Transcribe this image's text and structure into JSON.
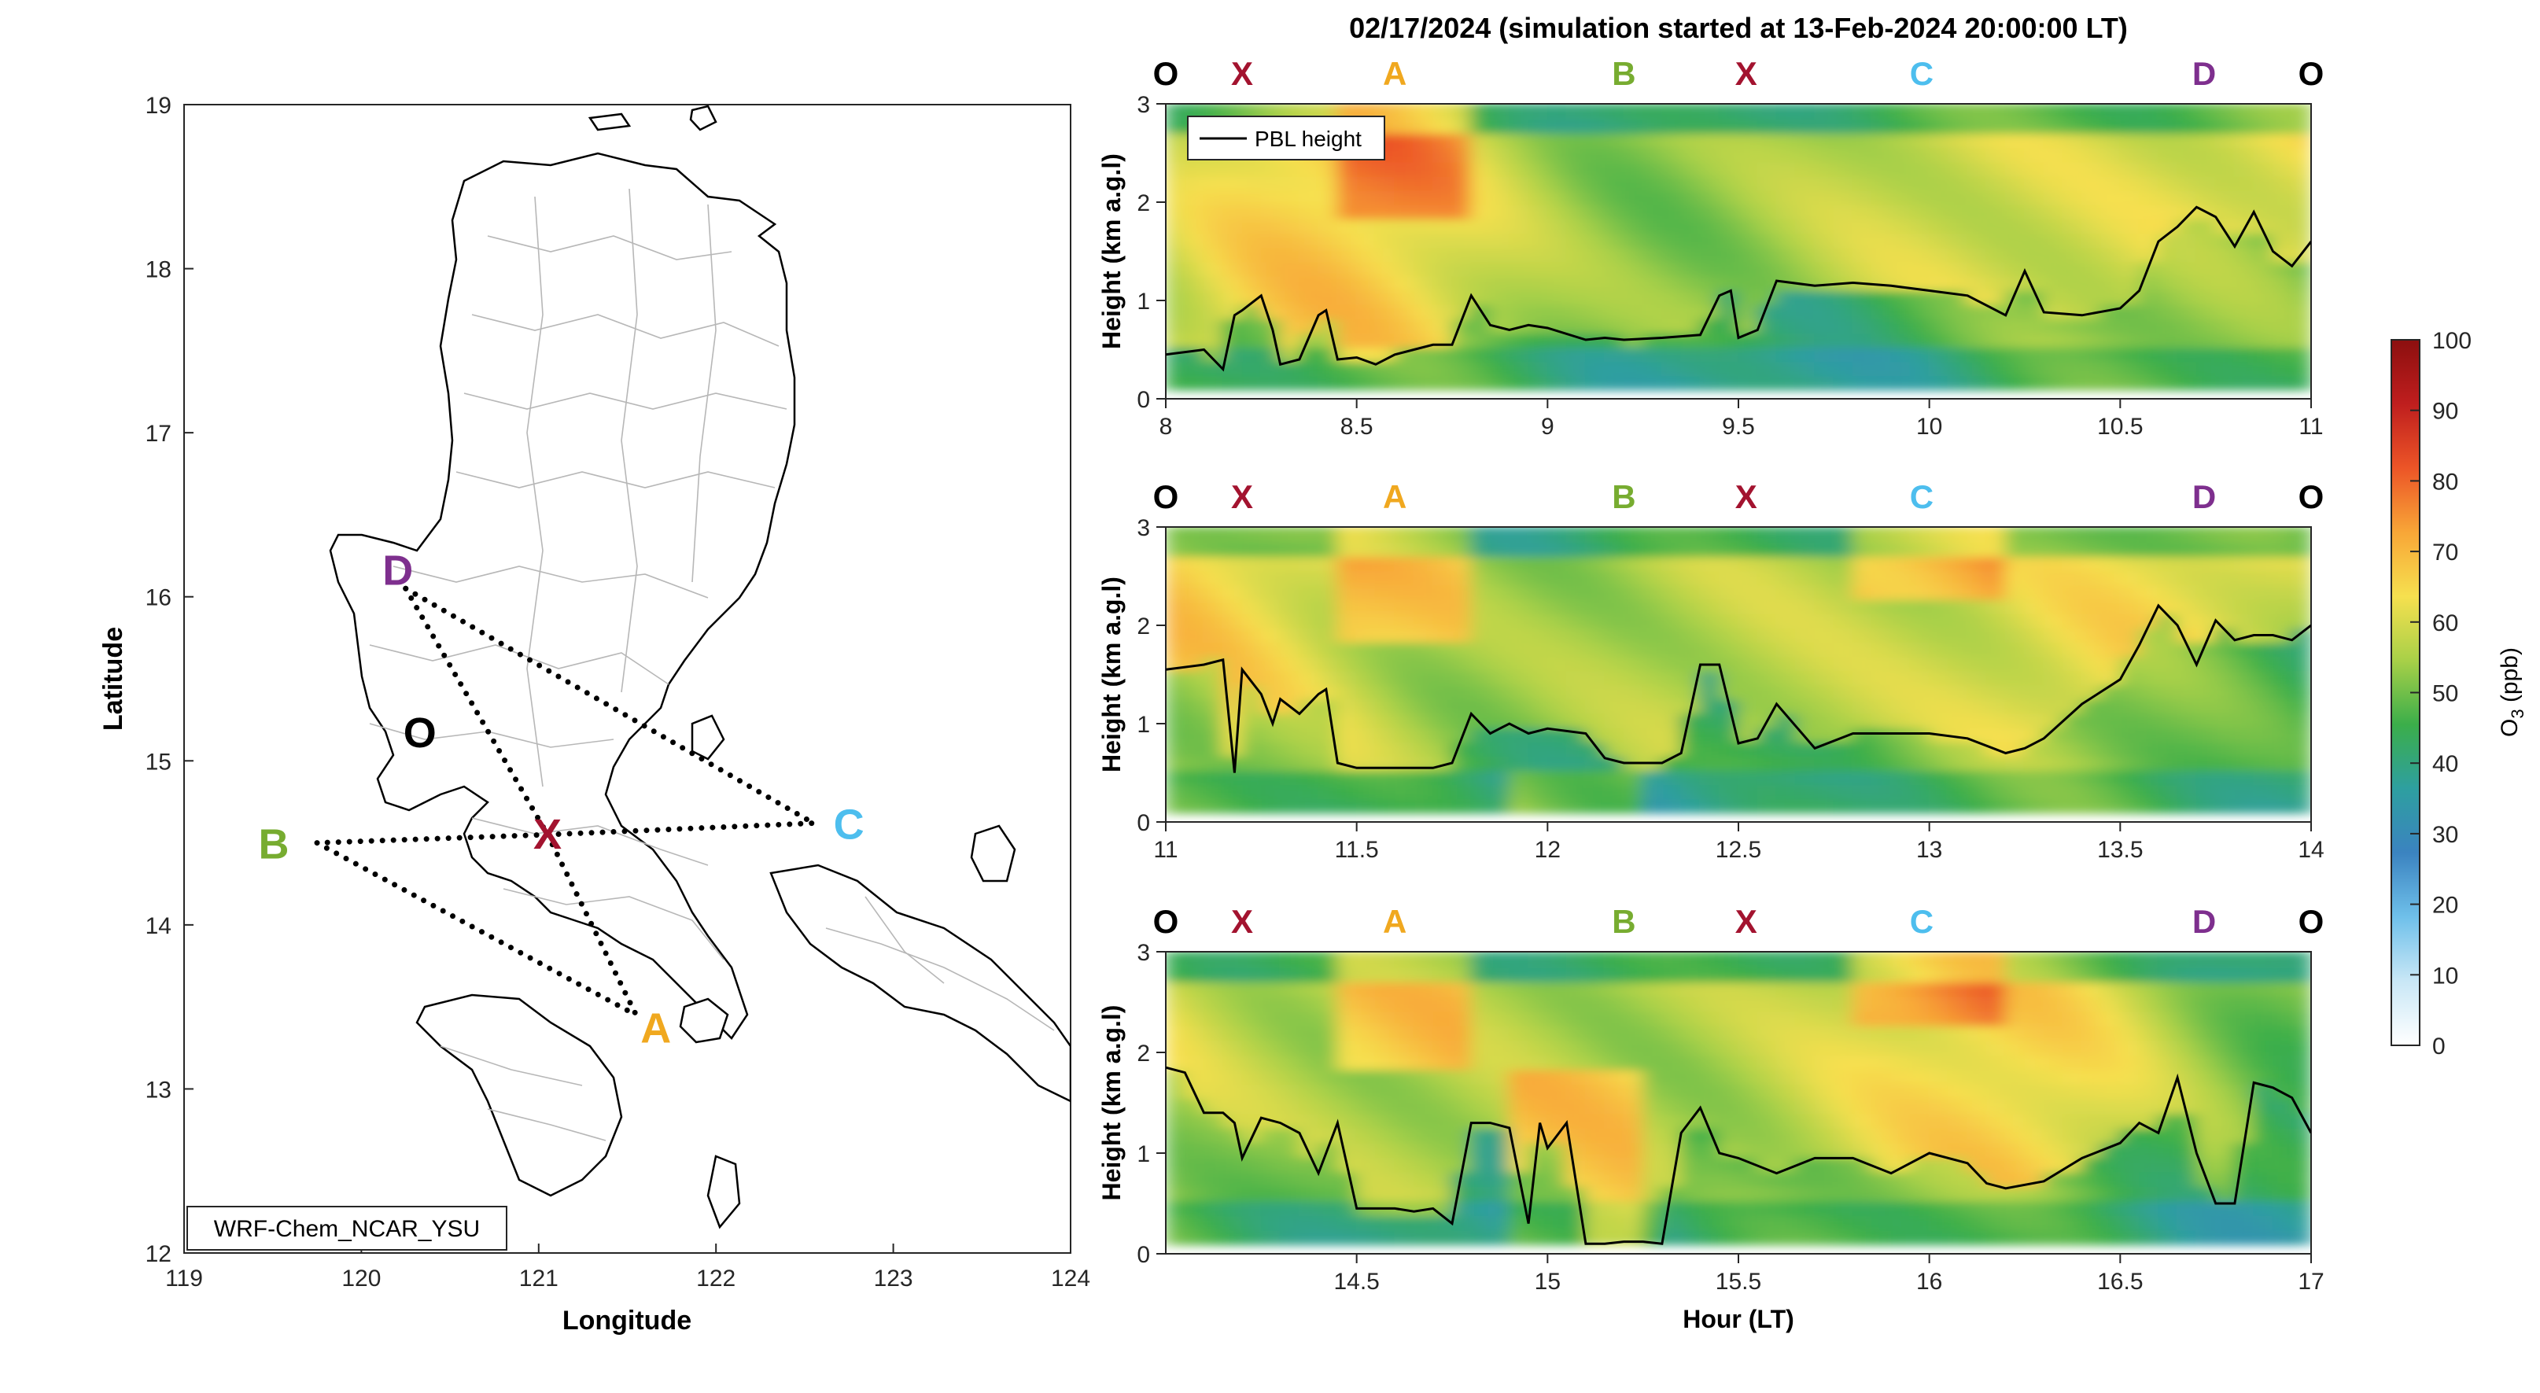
{
  "figure_title": "02/17/2024 (simulation started at 13-Feb-2024 20:00:00 LT)",
  "colors": {
    "O": "#000000",
    "X": "#a3132f",
    "A": "#f0a81f",
    "B": "#77ac30",
    "C": "#4dbeee",
    "D": "#7e2f8e",
    "pbl_line": "#000000"
  },
  "chart_data": [
    {
      "type": "map",
      "name": "Luzon route map",
      "xlabel": "Longitude",
      "ylabel": "Latitude",
      "xlim": [
        119,
        124
      ],
      "ylim": [
        12,
        19
      ],
      "x_ticks": [
        "119",
        "120",
        "121",
        "122",
        "123",
        "124"
      ],
      "y_ticks": [
        "12",
        "13",
        "14",
        "15",
        "16",
        "17",
        "18",
        "19"
      ],
      "model_label": "WRF-Chem_NCAR_YSU",
      "waypoints": [
        {
          "label": "O",
          "lon": 120.33,
          "lat": 15.17
        },
        {
          "label": "X",
          "lon": 121.05,
          "lat": 14.55
        },
        {
          "label": "A",
          "lon": 121.55,
          "lat": 13.45
        },
        {
          "label": "B",
          "lon": 119.75,
          "lat": 14.5
        },
        {
          "label": "C",
          "lon": 122.55,
          "lat": 14.62
        },
        {
          "label": "D",
          "lon": 120.25,
          "lat": 16.05
        }
      ],
      "route_segments": [
        [
          "D",
          "X"
        ],
        [
          "D",
          "C"
        ],
        [
          "X",
          "C"
        ],
        [
          "X",
          "A"
        ],
        [
          "X",
          "B"
        ],
        [
          "B",
          "A"
        ]
      ]
    },
    {
      "type": "heatmap",
      "name": "Panel 1",
      "ylabel": "Height (km a.g.l)",
      "xlim": [
        8,
        11
      ],
      "ylim": [
        0,
        3
      ],
      "x_ticks": [
        "8",
        "8.5",
        "9",
        "9.5",
        "10",
        "10.5",
        "11"
      ],
      "y_ticks": [
        "0",
        "1",
        "2",
        "3"
      ],
      "legend": "PBL height",
      "top_markers": [
        {
          "label": "O",
          "x": 8.0
        },
        {
          "label": "X",
          "x": 8.2
        },
        {
          "label": "A",
          "x": 8.6
        },
        {
          "label": "B",
          "x": 9.2
        },
        {
          "label": "X",
          "x": 9.52
        },
        {
          "label": "C",
          "x": 9.98
        },
        {
          "label": "D",
          "x": 10.72
        },
        {
          "label": "O",
          "x": 11.0
        }
      ],
      "pbl_height": {
        "x": [
          8.0,
          8.1,
          8.15,
          8.18,
          8.2,
          8.25,
          8.28,
          8.3,
          8.35,
          8.4,
          8.42,
          8.45,
          8.5,
          8.55,
          8.6,
          8.65,
          8.7,
          8.75,
          8.8,
          8.85,
          8.9,
          8.95,
          9.0,
          9.1,
          9.15,
          9.2,
          9.3,
          9.4,
          9.45,
          9.48,
          9.5,
          9.55,
          9.6,
          9.7,
          9.8,
          9.9,
          10.0,
          10.1,
          10.2,
          10.25,
          10.3,
          10.4,
          10.5,
          10.55,
          10.6,
          10.65,
          10.7,
          10.75,
          10.8,
          10.85,
          10.9,
          10.95,
          11.0
        ],
        "y": [
          0.45,
          0.5,
          0.3,
          0.85,
          0.9,
          1.05,
          0.7,
          0.35,
          0.4,
          0.85,
          0.9,
          0.4,
          0.42,
          0.35,
          0.45,
          0.5,
          0.55,
          0.55,
          1.05,
          0.75,
          0.7,
          0.75,
          0.72,
          0.6,
          0.62,
          0.6,
          0.62,
          0.65,
          1.05,
          1.1,
          0.62,
          0.7,
          1.2,
          1.15,
          1.18,
          1.15,
          1.1,
          1.05,
          0.85,
          1.3,
          0.88,
          0.85,
          0.92,
          1.1,
          1.6,
          1.75,
          1.95,
          1.85,
          1.55,
          1.9,
          1.5,
          1.35,
          1.6
        ]
      }
    },
    {
      "type": "heatmap",
      "name": "Panel 2",
      "ylabel": "Height (km a.g.l)",
      "xlim": [
        11,
        14
      ],
      "ylim": [
        0,
        3
      ],
      "x_ticks": [
        "11",
        "11.5",
        "12",
        "12.5",
        "13",
        "13.5",
        "14"
      ],
      "y_ticks": [
        "0",
        "1",
        "2",
        "3"
      ],
      "top_markers": [
        {
          "label": "O",
          "x": 11.0
        },
        {
          "label": "X",
          "x": 11.2
        },
        {
          "label": "A",
          "x": 11.6
        },
        {
          "label": "B",
          "x": 12.2
        },
        {
          "label": "X",
          "x": 12.52
        },
        {
          "label": "C",
          "x": 12.98
        },
        {
          "label": "D",
          "x": 13.72
        },
        {
          "label": "O",
          "x": 14.0
        }
      ],
      "pbl_height": {
        "x": [
          11.0,
          11.1,
          11.15,
          11.18,
          11.2,
          11.25,
          11.28,
          11.3,
          11.35,
          11.4,
          11.42,
          11.45,
          11.5,
          11.55,
          11.6,
          11.65,
          11.7,
          11.75,
          11.8,
          11.85,
          11.9,
          11.95,
          12.0,
          12.1,
          12.15,
          12.2,
          12.3,
          12.35,
          12.4,
          12.45,
          12.5,
          12.55,
          12.6,
          12.7,
          12.8,
          12.9,
          13.0,
          13.1,
          13.2,
          13.25,
          13.3,
          13.4,
          13.5,
          13.55,
          13.6,
          13.65,
          13.7,
          13.75,
          13.8,
          13.85,
          13.9,
          13.95,
          14.0
        ],
        "y": [
          1.55,
          1.6,
          1.65,
          0.5,
          1.55,
          1.3,
          1.0,
          1.25,
          1.1,
          1.3,
          1.35,
          0.6,
          0.55,
          0.55,
          0.55,
          0.55,
          0.55,
          0.6,
          1.1,
          0.9,
          1.0,
          0.9,
          0.95,
          0.9,
          0.65,
          0.6,
          0.6,
          0.7,
          1.6,
          1.6,
          0.8,
          0.85,
          1.2,
          0.75,
          0.9,
          0.9,
          0.9,
          0.85,
          0.7,
          0.75,
          0.85,
          1.2,
          1.45,
          1.8,
          2.2,
          2.0,
          1.6,
          2.05,
          1.85,
          1.9,
          1.9,
          1.85,
          2.0
        ]
      }
    },
    {
      "type": "heatmap",
      "name": "Panel 3",
      "ylabel": "Height (km a.g.l)",
      "xlabel": "Hour (LT)",
      "xlim": [
        14,
        17
      ],
      "ylim": [
        0,
        3
      ],
      "x_ticks": [
        "14.5",
        "15",
        "15.5",
        "16",
        "16.5",
        "17"
      ],
      "y_ticks": [
        "0",
        "1",
        "2",
        "3"
      ],
      "top_markers": [
        {
          "label": "O",
          "x": 14.0
        },
        {
          "label": "X",
          "x": 14.2
        },
        {
          "label": "A",
          "x": 14.6
        },
        {
          "label": "B",
          "x": 15.2
        },
        {
          "label": "X",
          "x": 15.52
        },
        {
          "label": "C",
          "x": 15.98
        },
        {
          "label": "D",
          "x": 16.72
        },
        {
          "label": "O",
          "x": 17.0
        }
      ],
      "pbl_height": {
        "x": [
          14.0,
          14.05,
          14.1,
          14.15,
          14.18,
          14.2,
          14.25,
          14.3,
          14.35,
          14.4,
          14.45,
          14.5,
          14.55,
          14.6,
          14.65,
          14.7,
          14.75,
          14.8,
          14.85,
          14.9,
          14.95,
          14.98,
          15.0,
          15.05,
          15.1,
          15.15,
          15.2,
          15.25,
          15.3,
          15.35,
          15.4,
          15.45,
          15.5,
          15.6,
          15.7,
          15.8,
          15.9,
          16.0,
          16.1,
          16.15,
          16.2,
          16.3,
          16.4,
          16.5,
          16.55,
          16.6,
          16.65,
          16.7,
          16.75,
          16.8,
          16.85,
          16.9,
          16.95,
          17.0
        ],
        "y": [
          1.85,
          1.8,
          1.4,
          1.4,
          1.3,
          0.95,
          1.35,
          1.3,
          1.2,
          0.8,
          1.3,
          0.45,
          0.45,
          0.45,
          0.42,
          0.45,
          0.3,
          1.3,
          1.3,
          1.25,
          0.3,
          1.3,
          1.05,
          1.3,
          0.1,
          0.1,
          0.12,
          0.12,
          0.1,
          1.2,
          1.45,
          1.0,
          0.95,
          0.8,
          0.95,
          0.95,
          0.8,
          1.0,
          0.9,
          0.7,
          0.65,
          0.72,
          0.95,
          1.1,
          1.3,
          1.2,
          1.75,
          1.0,
          0.5,
          0.5,
          1.7,
          1.65,
          1.55,
          1.2
        ]
      }
    },
    {
      "type": "colorbar",
      "label": "O3 (ppb)",
      "range": [
        0,
        100
      ],
      "ticks": [
        "0",
        "10",
        "20",
        "30",
        "40",
        "50",
        "60",
        "70",
        "80",
        "90",
        "100"
      ],
      "stops": [
        "#ffffff",
        "#c9e7f6",
        "#6fc0ea",
        "#3b83c0",
        "#2e9fa0",
        "#3bae4a",
        "#a8d048",
        "#f6e04f",
        "#f8a637",
        "#ec5527",
        "#bf1e1e",
        "#8c0f0f"
      ]
    }
  ]
}
